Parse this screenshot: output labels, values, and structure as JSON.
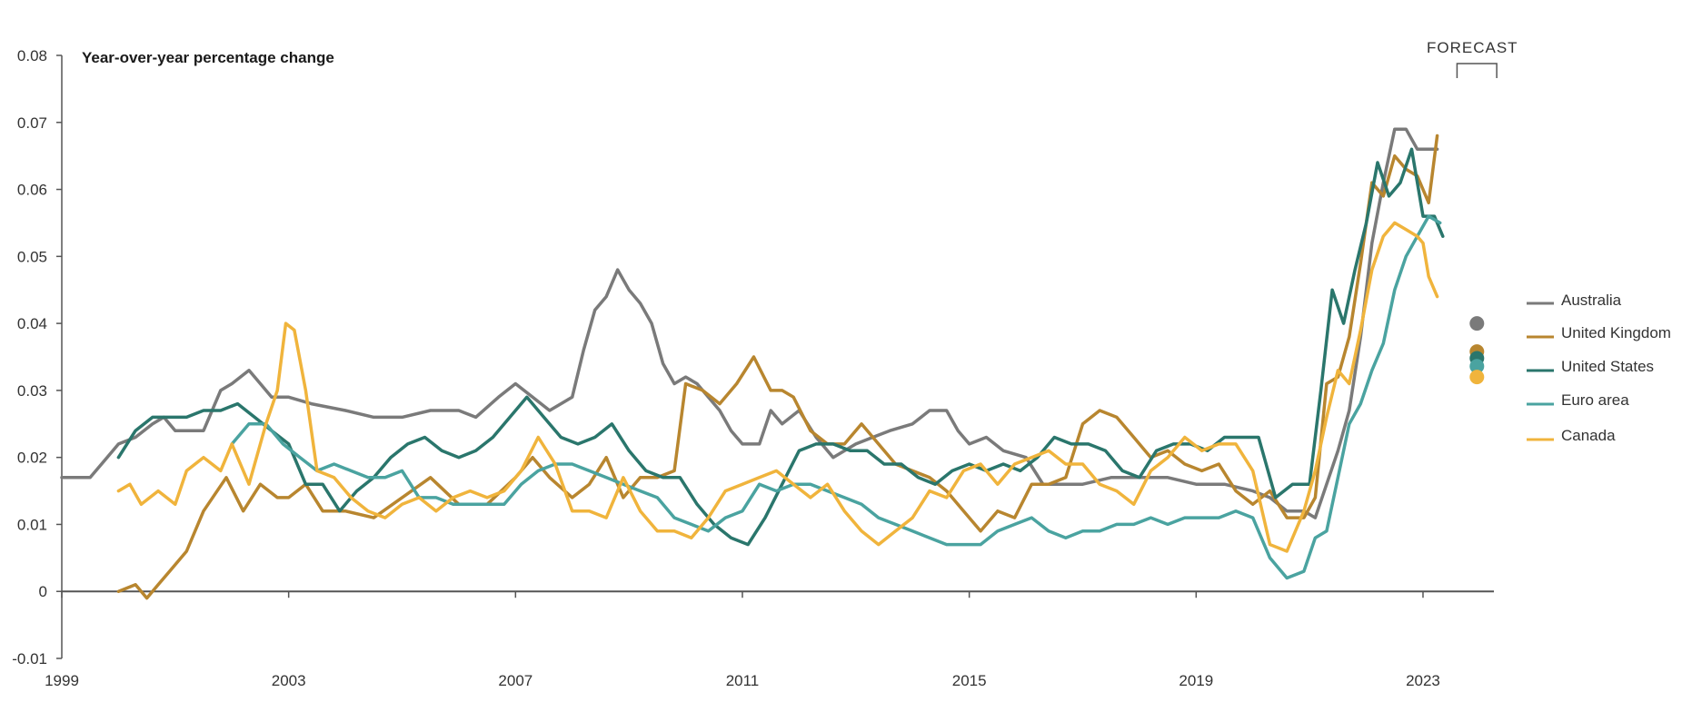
{
  "chart_data": {
    "type": "line",
    "title": "Year-over-year percentage change",
    "forecast_label": "FORECAST",
    "xlabel": "",
    "ylabel": "",
    "xlim": [
      1999,
      2024.25
    ],
    "ylim": [
      -0.01,
      0.08
    ],
    "x_ticks": [
      "1999",
      "2003",
      "2007",
      "2011",
      "2015",
      "2019",
      "2023"
    ],
    "y_ticks": [
      "-0.01",
      "0",
      "0.01",
      "0.02",
      "0.03",
      "0.04",
      "0.05",
      "0.06",
      "0.07",
      "0.08"
    ],
    "grid": false,
    "legend_position": "right",
    "forecast_window": [
      2023.6,
      2024.3
    ],
    "series": [
      {
        "name": "Australia",
        "color": "#7a7a7a",
        "x": [
          1999.0,
          1999.5,
          1999.9,
          2000.0,
          2000.3,
          2000.6,
          2000.8,
          2001.0,
          2001.5,
          2001.8,
          2002.0,
          2002.3,
          2002.5,
          2002.7,
          2003.0,
          2003.4,
          2004.0,
          2004.5,
          2005.0,
          2005.5,
          2006.0,
          2006.3,
          2006.7,
          2007.0,
          2007.3,
          2007.6,
          2007.8,
          2008.0,
          2008.2,
          2008.4,
          2008.6,
          2008.8,
          2009.0,
          2009.2,
          2009.4,
          2009.6,
          2009.8,
          2010.0,
          2010.2,
          2010.4,
          2010.6,
          2010.8,
          2011.0,
          2011.3,
          2011.5,
          2011.7,
          2012.0,
          2012.3,
          2012.6,
          2013.0,
          2013.3,
          2013.6,
          2014.0,
          2014.3,
          2014.6,
          2014.8,
          2015.0,
          2015.3,
          2015.6,
          2016.0,
          2016.3,
          2016.6,
          2017.0,
          2017.5,
          2018.0,
          2018.5,
          2019.0,
          2019.5,
          2020.0,
          2020.3,
          2020.6,
          2020.9,
          2021.1,
          2021.3,
          2021.5,
          2021.7,
          2021.9,
          2022.1,
          2022.3,
          2022.5,
          2022.7,
          2022.9,
          2023.0,
          2023.25
        ],
        "y": [
          0.017,
          0.017,
          0.021,
          0.022,
          0.023,
          0.025,
          0.026,
          0.024,
          0.024,
          0.03,
          0.031,
          0.033,
          0.031,
          0.029,
          0.029,
          0.028,
          0.027,
          0.026,
          0.026,
          0.027,
          0.027,
          0.026,
          0.029,
          0.031,
          0.029,
          0.027,
          0.028,
          0.029,
          0.036,
          0.042,
          0.044,
          0.048,
          0.045,
          0.043,
          0.04,
          0.034,
          0.031,
          0.032,
          0.031,
          0.029,
          0.027,
          0.024,
          0.022,
          0.022,
          0.027,
          0.025,
          0.027,
          0.023,
          0.02,
          0.022,
          0.023,
          0.024,
          0.025,
          0.027,
          0.027,
          0.024,
          0.022,
          0.023,
          0.021,
          0.02,
          0.016,
          0.016,
          0.016,
          0.017,
          0.017,
          0.017,
          0.016,
          0.016,
          0.015,
          0.014,
          0.012,
          0.012,
          0.011,
          0.016,
          0.021,
          0.027,
          0.038,
          0.052,
          0.061,
          0.069,
          0.069,
          0.066,
          0.066,
          0.066
        ]
      },
      {
        "name": "United Kingdom",
        "color": "#b8862f",
        "x": [
          2000.0,
          2000.3,
          2000.5,
          2000.7,
          2000.9,
          2001.2,
          2001.5,
          2001.9,
          2002.2,
          2002.5,
          2002.8,
          2003.0,
          2003.3,
          2003.6,
          2004.0,
          2004.5,
          2005.0,
          2005.5,
          2006.0,
          2006.5,
          2007.0,
          2007.3,
          2007.6,
          2008.0,
          2008.3,
          2008.6,
          2008.9,
          2009.2,
          2009.5,
          2009.8,
          2010.0,
          2010.3,
          2010.6,
          2010.9,
          2011.2,
          2011.5,
          2011.7,
          2011.9,
          2012.2,
          2012.5,
          2012.8,
          2013.1,
          2013.4,
          2013.7,
          2014.0,
          2014.3,
          2014.6,
          2014.9,
          2015.2,
          2015.5,
          2015.8,
          2016.1,
          2016.4,
          2016.7,
          2017.0,
          2017.3,
          2017.6,
          2017.9,
          2018.2,
          2018.5,
          2018.8,
          2019.1,
          2019.4,
          2019.7,
          2020.0,
          2020.3,
          2020.6,
          2020.9,
          2021.1,
          2021.3,
          2021.5,
          2021.7,
          2021.9,
          2022.1,
          2022.3,
          2022.5,
          2022.7,
          2022.9,
          2023.1,
          2023.25
        ],
        "y": [
          0.0,
          0.001,
          -0.001,
          0.001,
          0.003,
          0.006,
          0.012,
          0.017,
          0.012,
          0.016,
          0.014,
          0.014,
          0.016,
          0.012,
          0.012,
          0.011,
          0.014,
          0.017,
          0.013,
          0.013,
          0.017,
          0.02,
          0.017,
          0.014,
          0.016,
          0.02,
          0.014,
          0.017,
          0.017,
          0.018,
          0.031,
          0.03,
          0.028,
          0.031,
          0.035,
          0.03,
          0.03,
          0.029,
          0.024,
          0.022,
          0.022,
          0.025,
          0.022,
          0.019,
          0.018,
          0.017,
          0.015,
          0.012,
          0.009,
          0.012,
          0.011,
          0.016,
          0.016,
          0.017,
          0.025,
          0.027,
          0.026,
          0.023,
          0.02,
          0.021,
          0.019,
          0.018,
          0.019,
          0.015,
          0.013,
          0.015,
          0.011,
          0.011,
          0.014,
          0.031,
          0.032,
          0.038,
          0.049,
          0.061,
          0.059,
          0.065,
          0.063,
          0.062,
          0.058,
          0.068
        ]
      },
      {
        "name": "United States",
        "color": "#2a766c",
        "x": [
          2000.0,
          2000.3,
          2000.6,
          2000.9,
          2001.2,
          2001.5,
          2001.8,
          2002.1,
          2002.4,
          2002.7,
          2003.0,
          2003.3,
          2003.6,
          2003.9,
          2004.2,
          2004.5,
          2004.8,
          2005.1,
          2005.4,
          2005.7,
          2006.0,
          2006.3,
          2006.6,
          2006.9,
          2007.2,
          2007.5,
          2007.8,
          2008.1,
          2008.4,
          2008.7,
          2009.0,
          2009.3,
          2009.6,
          2009.9,
          2010.2,
          2010.5,
          2010.8,
          2011.1,
          2011.4,
          2011.7,
          2012.0,
          2012.3,
          2012.6,
          2012.9,
          2013.2,
          2013.5,
          2013.8,
          2014.1,
          2014.4,
          2014.7,
          2015.0,
          2015.3,
          2015.6,
          2015.9,
          2016.2,
          2016.5,
          2016.8,
          2017.1,
          2017.4,
          2017.7,
          2018.0,
          2018.3,
          2018.6,
          2018.9,
          2019.2,
          2019.5,
          2019.8,
          2020.1,
          2020.4,
          2020.7,
          2021.0,
          2021.2,
          2021.4,
          2021.6,
          2021.8,
          2022.0,
          2022.2,
          2022.4,
          2022.6,
          2022.8,
          2023.0,
          2023.2,
          2023.35
        ],
        "y": [
          0.02,
          0.024,
          0.026,
          0.026,
          0.026,
          0.027,
          0.027,
          0.028,
          0.026,
          0.024,
          0.022,
          0.016,
          0.016,
          0.012,
          0.015,
          0.017,
          0.02,
          0.022,
          0.023,
          0.021,
          0.02,
          0.021,
          0.023,
          0.026,
          0.029,
          0.026,
          0.023,
          0.022,
          0.023,
          0.025,
          0.021,
          0.018,
          0.017,
          0.017,
          0.013,
          0.01,
          0.008,
          0.007,
          0.011,
          0.016,
          0.021,
          0.022,
          0.022,
          0.021,
          0.021,
          0.019,
          0.019,
          0.017,
          0.016,
          0.018,
          0.019,
          0.018,
          0.019,
          0.018,
          0.02,
          0.023,
          0.022,
          0.022,
          0.021,
          0.018,
          0.017,
          0.021,
          0.022,
          0.022,
          0.021,
          0.023,
          0.023,
          0.023,
          0.014,
          0.016,
          0.016,
          0.03,
          0.045,
          0.04,
          0.048,
          0.055,
          0.064,
          0.059,
          0.061,
          0.066,
          0.056,
          0.056,
          0.053
        ]
      },
      {
        "name": "Euro area",
        "color": "#4aa3a0",
        "x": [
          2002.0,
          2002.3,
          2002.6,
          2002.9,
          2003.2,
          2003.5,
          2003.8,
          2004.1,
          2004.4,
          2004.7,
          2005.0,
          2005.3,
          2005.6,
          2005.9,
          2006.2,
          2006.5,
          2006.8,
          2007.1,
          2007.4,
          2007.7,
          2008.0,
          2008.3,
          2008.6,
          2008.9,
          2009.2,
          2009.5,
          2009.8,
          2010.1,
          2010.4,
          2010.7,
          2011.0,
          2011.3,
          2011.6,
          2011.9,
          2012.2,
          2012.5,
          2012.8,
          2013.1,
          2013.4,
          2013.7,
          2014.0,
          2014.3,
          2014.6,
          2014.9,
          2015.2,
          2015.5,
          2015.8,
          2016.1,
          2016.4,
          2016.7,
          2017.0,
          2017.3,
          2017.6,
          2017.9,
          2018.2,
          2018.5,
          2018.8,
          2019.1,
          2019.4,
          2019.7,
          2020.0,
          2020.3,
          2020.6,
          2020.9,
          2021.1,
          2021.3,
          2021.5,
          2021.7,
          2021.9,
          2022.1,
          2022.3,
          2022.5,
          2022.7,
          2022.9,
          2023.1,
          2023.3
        ],
        "y": [
          0.022,
          0.025,
          0.025,
          0.022,
          0.02,
          0.018,
          0.019,
          0.018,
          0.017,
          0.017,
          0.018,
          0.014,
          0.014,
          0.013,
          0.013,
          0.013,
          0.013,
          0.016,
          0.018,
          0.019,
          0.019,
          0.018,
          0.017,
          0.016,
          0.015,
          0.014,
          0.011,
          0.01,
          0.009,
          0.011,
          0.012,
          0.016,
          0.015,
          0.016,
          0.016,
          0.015,
          0.014,
          0.013,
          0.011,
          0.01,
          0.009,
          0.008,
          0.007,
          0.007,
          0.007,
          0.009,
          0.01,
          0.011,
          0.009,
          0.008,
          0.009,
          0.009,
          0.01,
          0.01,
          0.011,
          0.01,
          0.011,
          0.011,
          0.011,
          0.012,
          0.011,
          0.005,
          0.002,
          0.003,
          0.008,
          0.009,
          0.017,
          0.025,
          0.028,
          0.033,
          0.037,
          0.045,
          0.05,
          0.053,
          0.056,
          0.055
        ]
      },
      {
        "name": "Canada",
        "color": "#f0b43c",
        "x": [
          2000.0,
          2000.2,
          2000.4,
          2000.7,
          2001.0,
          2001.2,
          2001.5,
          2001.8,
          2002.0,
          2002.3,
          2002.6,
          2002.8,
          2002.95,
          2003.1,
          2003.3,
          2003.5,
          2003.8,
          2004.1,
          2004.4,
          2004.7,
          2005.0,
          2005.3,
          2005.6,
          2005.9,
          2006.2,
          2006.5,
          2006.8,
          2007.1,
          2007.4,
          2007.7,
          2008.0,
          2008.3,
          2008.6,
          2008.9,
          2009.2,
          2009.5,
          2009.8,
          2010.1,
          2010.4,
          2010.7,
          2011.0,
          2011.3,
          2011.6,
          2011.9,
          2012.2,
          2012.5,
          2012.8,
          2013.1,
          2013.4,
          2013.7,
          2014.0,
          2014.3,
          2014.6,
          2014.9,
          2015.2,
          2015.5,
          2015.8,
          2016.1,
          2016.4,
          2016.7,
          2017.0,
          2017.3,
          2017.6,
          2017.9,
          2018.2,
          2018.5,
          2018.8,
          2019.1,
          2019.4,
          2019.7,
          2020.0,
          2020.3,
          2020.6,
          2020.9,
          2021.1,
          2021.3,
          2021.5,
          2021.7,
          2021.9,
          2022.1,
          2022.3,
          2022.5,
          2022.7,
          2022.9,
          2023.0,
          2023.1,
          2023.25
        ],
        "y": [
          0.015,
          0.016,
          0.013,
          0.015,
          0.013,
          0.018,
          0.02,
          0.018,
          0.022,
          0.016,
          0.025,
          0.03,
          0.04,
          0.039,
          0.03,
          0.018,
          0.017,
          0.014,
          0.012,
          0.011,
          0.013,
          0.014,
          0.012,
          0.014,
          0.015,
          0.014,
          0.015,
          0.018,
          0.023,
          0.019,
          0.012,
          0.012,
          0.011,
          0.017,
          0.012,
          0.009,
          0.009,
          0.008,
          0.011,
          0.015,
          0.016,
          0.017,
          0.018,
          0.016,
          0.014,
          0.016,
          0.012,
          0.009,
          0.007,
          0.009,
          0.011,
          0.015,
          0.014,
          0.018,
          0.019,
          0.016,
          0.019,
          0.02,
          0.021,
          0.019,
          0.019,
          0.016,
          0.015,
          0.013,
          0.018,
          0.02,
          0.023,
          0.021,
          0.022,
          0.022,
          0.018,
          0.007,
          0.006,
          0.012,
          0.018,
          0.026,
          0.033,
          0.031,
          0.039,
          0.048,
          0.053,
          0.055,
          0.054,
          0.053,
          0.052,
          0.047,
          0.044
        ]
      }
    ],
    "forecast_points": [
      {
        "series": "Australia",
        "value": 0.04
      },
      {
        "series": "United Kingdom",
        "value": 0.0358
      },
      {
        "series": "United States",
        "value": 0.0348
      },
      {
        "series": "Euro area",
        "value": 0.0336
      },
      {
        "series": "Canada",
        "value": 0.032
      }
    ]
  }
}
